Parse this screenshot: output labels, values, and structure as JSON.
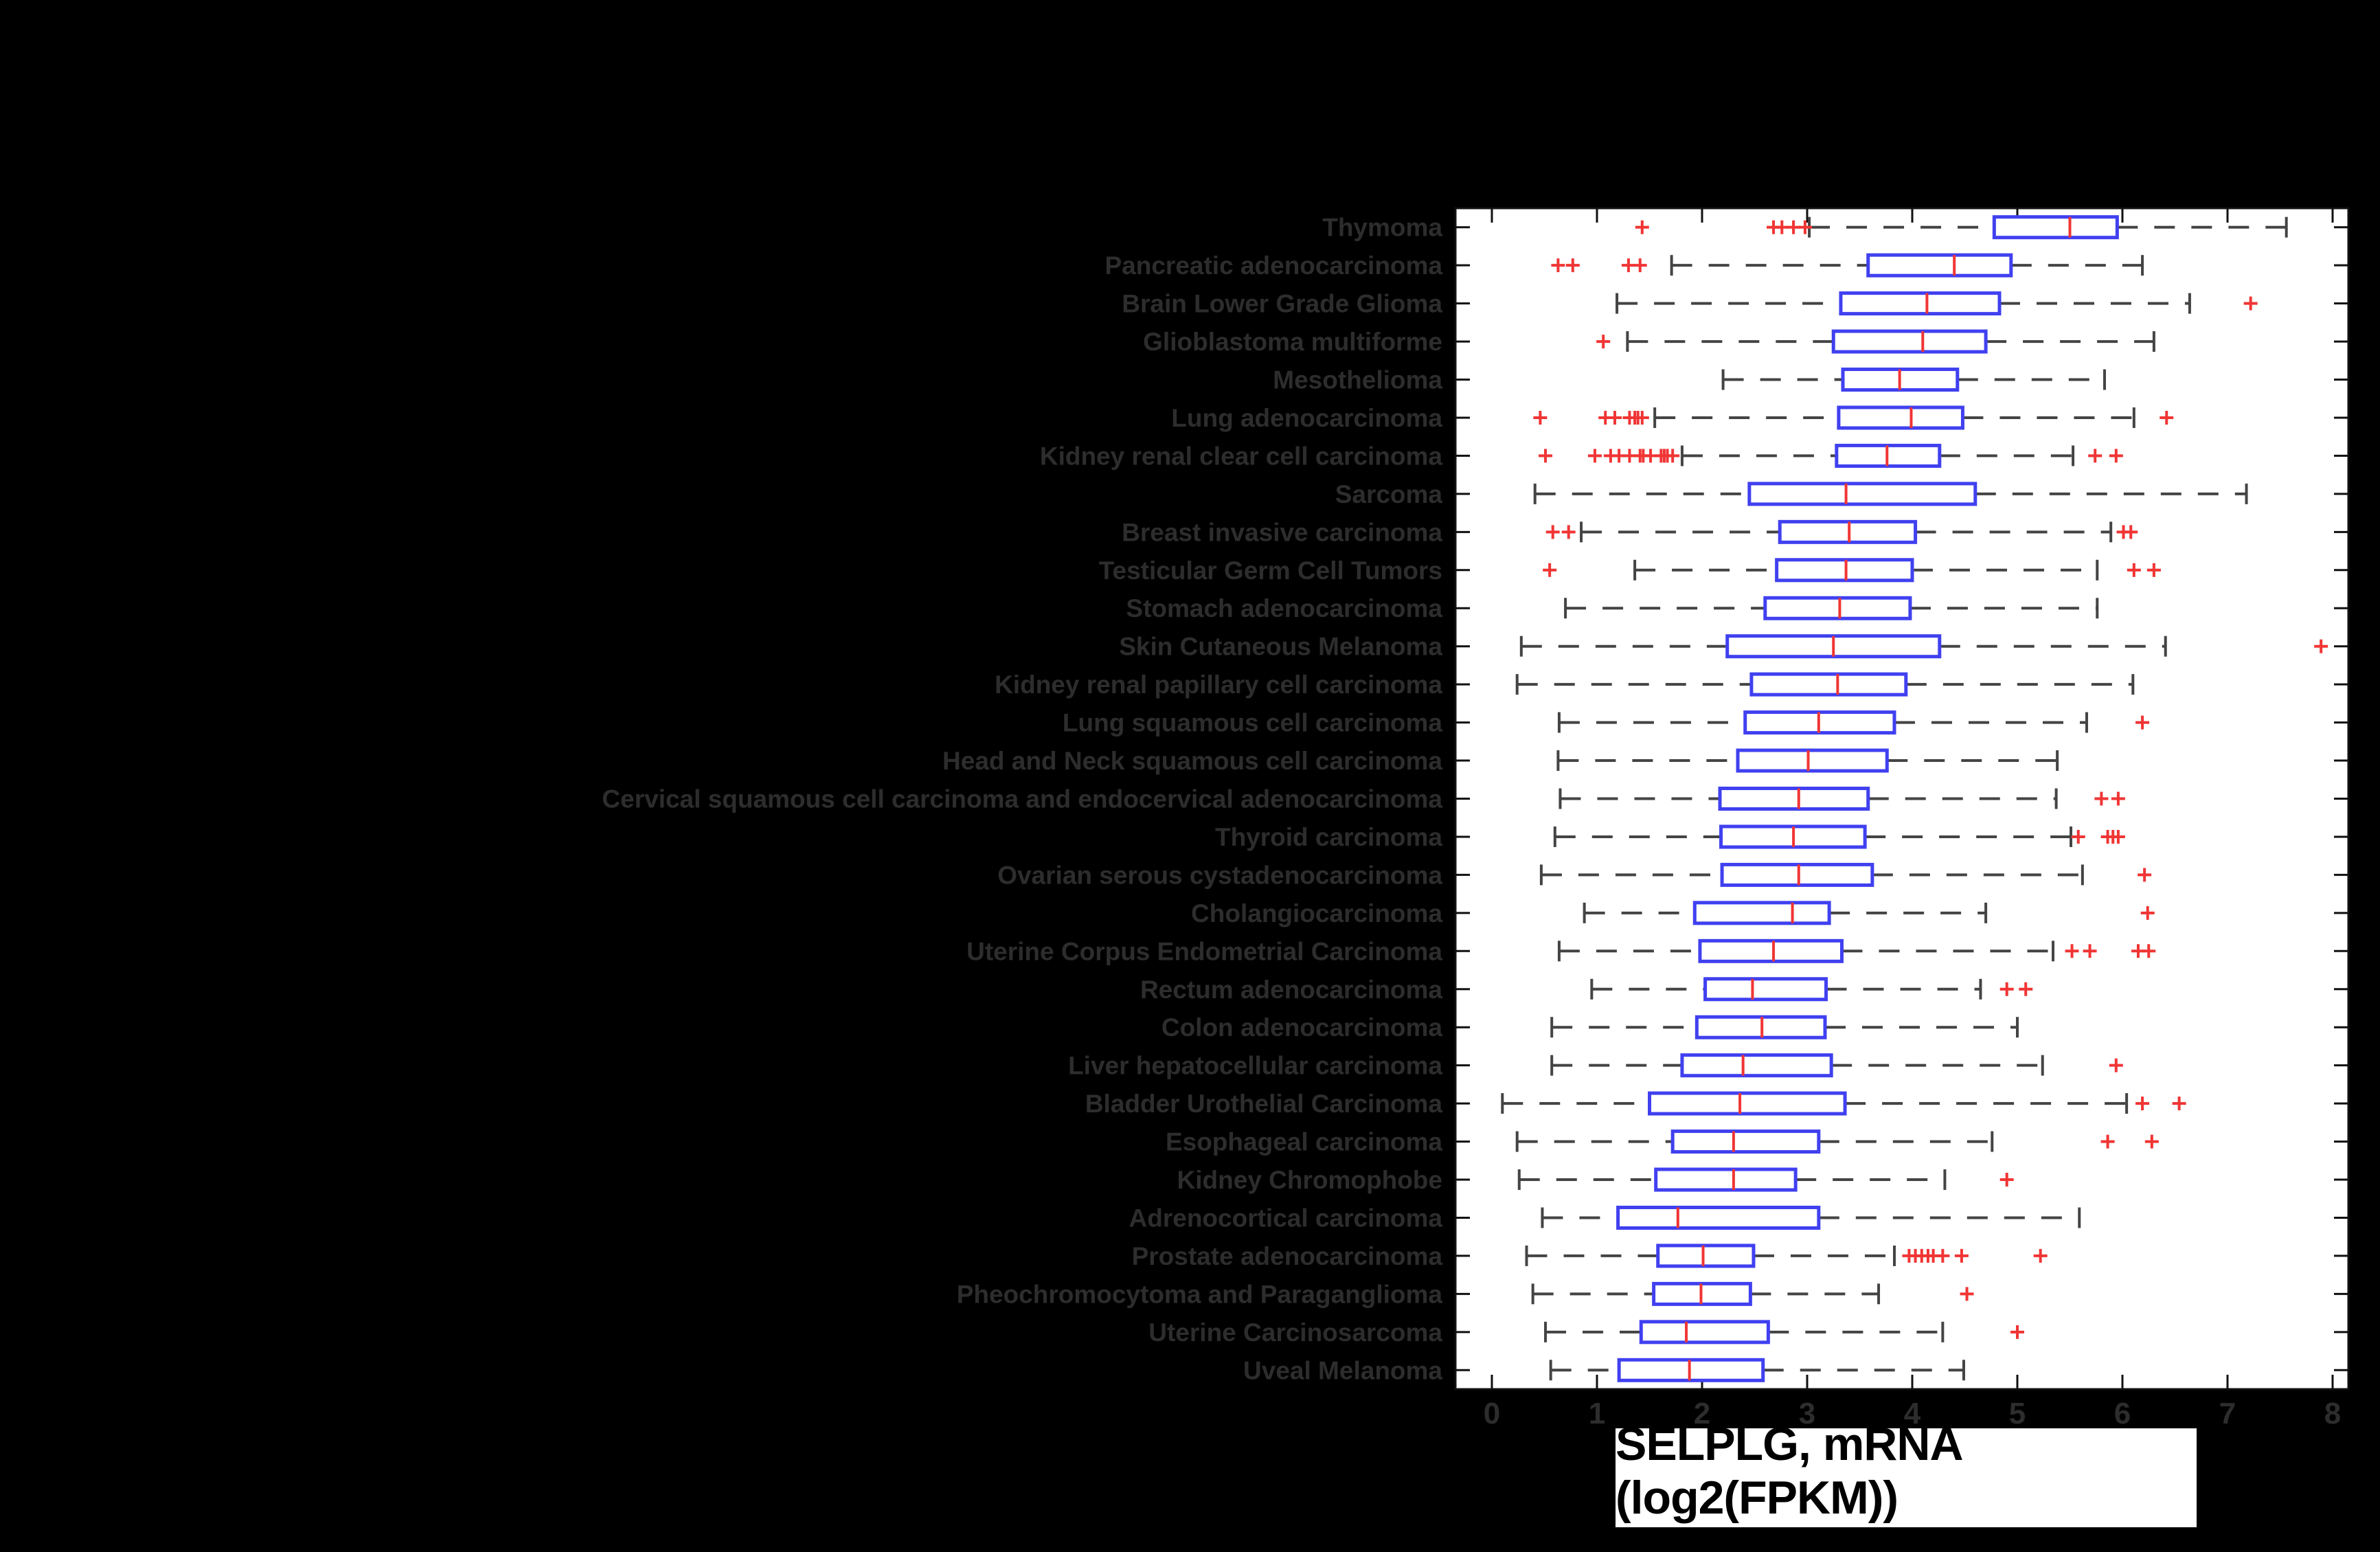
{
  "figure": {
    "background": "#000000",
    "plot_background": "#ffffff"
  },
  "chart_data": {
    "type": "boxplot",
    "orientation": "horizontal",
    "title": "",
    "xlabel": "SELPLG, mRNA (log2(FPKM))",
    "ylabel": "",
    "x_ticks": [
      0,
      1,
      2,
      3,
      4,
      5,
      6,
      7,
      8
    ],
    "xlim": [
      -0.35,
      8.15
    ],
    "grid": false,
    "legend": "none",
    "colors": {
      "box": "#4040f0",
      "median": "#f03535",
      "outlier": "#f03535",
      "whisker": "#444444",
      "axis": "#111111",
      "category_label_text": "#2d2d2d",
      "tick_label_text": "#2d2d2d",
      "xlabel_text": "#000000",
      "xlabel_background": "#ffffff"
    },
    "rows": [
      {
        "label": "Thymoma",
        "whisker_low": 3.02,
        "q1": 4.78,
        "median": 5.5,
        "q3": 5.95,
        "whisker_high": 7.56,
        "outliers": [
          1.43,
          2.68,
          2.76,
          2.87,
          2.98
        ]
      },
      {
        "label": "Pancreatic adenocarcinoma",
        "whisker_low": 1.71,
        "q1": 3.58,
        "median": 4.4,
        "q3": 4.94,
        "whisker_high": 6.19,
        "outliers": [
          0.63,
          0.77,
          1.3,
          1.41
        ]
      },
      {
        "label": "Brain Lower Grade Glioma",
        "whisker_low": 1.19,
        "q1": 3.32,
        "median": 4.14,
        "q3": 4.83,
        "whisker_high": 6.64,
        "outliers": [
          7.22
        ]
      },
      {
        "label": "Glioblastoma multiforme",
        "whisker_low": 1.29,
        "q1": 3.25,
        "median": 4.1,
        "q3": 4.7,
        "whisker_high": 6.3,
        "outliers": [
          1.06
        ]
      },
      {
        "label": "Mesothelioma",
        "whisker_low": 2.2,
        "q1": 3.34,
        "median": 3.88,
        "q3": 4.43,
        "whisker_high": 5.83,
        "outliers": []
      },
      {
        "label": "Lung adenocarcinoma",
        "whisker_low": 1.55,
        "q1": 3.3,
        "median": 3.99,
        "q3": 4.48,
        "whisker_high": 6.11,
        "outliers": [
          0.46,
          1.08,
          1.17,
          1.31,
          1.36,
          1.39,
          1.43,
          6.42
        ]
      },
      {
        "label": "Kidney renal clear cell carcinoma",
        "whisker_low": 1.81,
        "q1": 3.28,
        "median": 3.76,
        "q3": 4.26,
        "whisker_high": 5.53,
        "outliers": [
          0.51,
          0.98,
          1.13,
          1.21,
          1.31,
          1.41,
          1.44,
          1.51,
          1.61,
          1.64,
          1.67,
          1.72,
          5.74,
          5.94
        ]
      },
      {
        "label": "Sarcoma",
        "whisker_low": 0.41,
        "q1": 2.45,
        "median": 3.37,
        "q3": 4.6,
        "whisker_high": 7.18,
        "outliers": []
      },
      {
        "label": "Breast invasive carcinoma",
        "whisker_low": 0.85,
        "q1": 2.74,
        "median": 3.4,
        "q3": 4.03,
        "whisker_high": 5.89,
        "outliers": [
          0.58,
          0.73,
          6.01,
          6.08
        ]
      },
      {
        "label": "Testicular Germ Cell Tumors",
        "whisker_low": 1.36,
        "q1": 2.71,
        "median": 3.37,
        "q3": 4.0,
        "whisker_high": 5.76,
        "outliers": [
          0.55,
          6.11,
          6.3
        ]
      },
      {
        "label": "Stomach adenocarcinoma",
        "whisker_low": 0.7,
        "q1": 2.6,
        "median": 3.31,
        "q3": 3.98,
        "whisker_high": 5.76,
        "outliers": []
      },
      {
        "label": "Skin Cutaneous Melanoma",
        "whisker_low": 0.28,
        "q1": 2.24,
        "median": 3.25,
        "q3": 4.26,
        "whisker_high": 6.41,
        "outliers": [
          7.89
        ]
      },
      {
        "label": "Kidney renal papillary cell carcinoma",
        "whisker_low": 0.24,
        "q1": 2.47,
        "median": 3.29,
        "q3": 3.94,
        "whisker_high": 6.1,
        "outliers": []
      },
      {
        "label": "Lung squamous cell carcinoma",
        "whisker_low": 0.64,
        "q1": 2.41,
        "median": 3.11,
        "q3": 3.83,
        "whisker_high": 5.66,
        "outliers": [
          6.19
        ]
      },
      {
        "label": "Head and Neck squamous cell carcinoma",
        "whisker_low": 0.63,
        "q1": 2.34,
        "median": 3.01,
        "q3": 3.76,
        "whisker_high": 5.38,
        "outliers": []
      },
      {
        "label": "Cervical squamous cell carcinoma and endocervical adenocarcinoma",
        "whisker_low": 0.65,
        "q1": 2.17,
        "median": 2.92,
        "q3": 3.58,
        "whisker_high": 5.37,
        "outliers": [
          5.8,
          5.96
        ]
      },
      {
        "label": "Thyroid carcinoma",
        "whisker_low": 0.6,
        "q1": 2.18,
        "median": 2.87,
        "q3": 3.55,
        "whisker_high": 5.51,
        "outliers": [
          5.58,
          5.86,
          5.91,
          5.96
        ]
      },
      {
        "label": "Ovarian serous cystadenocarcinoma",
        "whisker_low": 0.47,
        "q1": 2.19,
        "median": 2.92,
        "q3": 3.62,
        "whisker_high": 5.62,
        "outliers": [
          6.21
        ]
      },
      {
        "label": "Cholangiocarcinoma",
        "whisker_low": 0.88,
        "q1": 1.93,
        "median": 2.86,
        "q3": 3.21,
        "whisker_high": 4.7,
        "outliers": [
          6.24
        ]
      },
      {
        "label": "Uterine Corpus Endometrial Carcinoma",
        "whisker_low": 0.64,
        "q1": 1.98,
        "median": 2.68,
        "q3": 3.33,
        "whisker_high": 5.34,
        "outliers": [
          5.52,
          5.69,
          6.15,
          6.25
        ]
      },
      {
        "label": "Rectum adenocarcinoma",
        "whisker_low": 0.95,
        "q1": 2.03,
        "median": 2.48,
        "q3": 3.18,
        "whisker_high": 4.65,
        "outliers": [
          4.9,
          5.08
        ]
      },
      {
        "label": "Colon adenocarcinoma",
        "whisker_low": 0.57,
        "q1": 1.95,
        "median": 2.57,
        "q3": 3.17,
        "whisker_high": 5.0,
        "outliers": []
      },
      {
        "label": "Liver hepatocellular carcinoma",
        "whisker_low": 0.57,
        "q1": 1.81,
        "median": 2.39,
        "q3": 3.23,
        "whisker_high": 5.24,
        "outliers": [
          5.94
        ]
      },
      {
        "label": "Bladder Urothelial Carcinoma",
        "whisker_low": 0.1,
        "q1": 1.5,
        "median": 2.36,
        "q3": 3.36,
        "whisker_high": 6.04,
        "outliers": [
          6.19,
          6.54
        ]
      },
      {
        "label": "Esophageal carcinoma",
        "whisker_low": 0.24,
        "q1": 1.72,
        "median": 2.3,
        "q3": 3.11,
        "whisker_high": 4.76,
        "outliers": [
          5.86,
          6.28
        ]
      },
      {
        "label": "Kidney Chromophobe",
        "whisker_low": 0.26,
        "q1": 1.56,
        "median": 2.3,
        "q3": 2.89,
        "whisker_high": 4.31,
        "outliers": [
          4.9
        ]
      },
      {
        "label": "Adrenocortical carcinoma",
        "whisker_low": 0.48,
        "q1": 1.2,
        "median": 1.77,
        "q3": 3.11,
        "whisker_high": 5.59,
        "outliers": []
      },
      {
        "label": "Prostate adenocarcinoma",
        "whisker_low": 0.33,
        "q1": 1.58,
        "median": 2.01,
        "q3": 2.49,
        "whisker_high": 3.83,
        "outliers": [
          3.97,
          4.03,
          4.09,
          4.15,
          4.2,
          4.29,
          4.47,
          5.22
        ]
      },
      {
        "label": "Pheochromocytoma and Paraganglioma",
        "whisker_low": 0.39,
        "q1": 1.54,
        "median": 1.99,
        "q3": 2.46,
        "whisker_high": 3.68,
        "outliers": [
          4.52
        ]
      },
      {
        "label": "Uterine Carcinosarcoma",
        "whisker_low": 0.51,
        "q1": 1.42,
        "median": 1.85,
        "q3": 2.63,
        "whisker_high": 4.29,
        "outliers": [
          5.0
        ]
      },
      {
        "label": "Uveal Melanoma",
        "whisker_low": 0.56,
        "q1": 1.21,
        "median": 1.88,
        "q3": 2.58,
        "whisker_high": 4.49,
        "outliers": []
      }
    ]
  }
}
